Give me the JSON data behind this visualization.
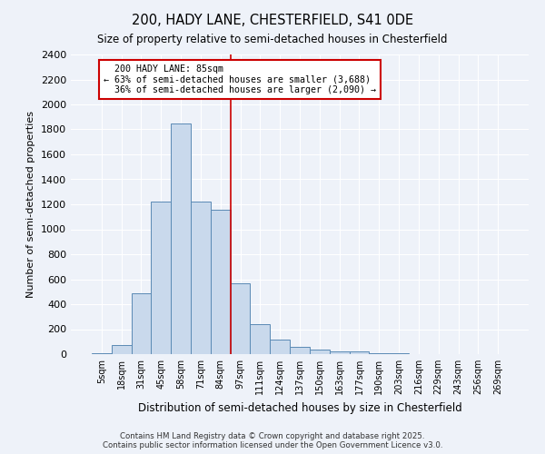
{
  "title": "200, HADY LANE, CHESTERFIELD, S41 0DE",
  "subtitle": "Size of property relative to semi-detached houses in Chesterfield",
  "xlabel": "Distribution of semi-detached houses by size in Chesterfield",
  "ylabel": "Number of semi-detached properties",
  "footer": "Contains HM Land Registry data © Crown copyright and database right 2025.\nContains public sector information licensed under the Open Government Licence v3.0.",
  "property_label": "200 HADY LANE: 85sqm",
  "pct_smaller": 63,
  "pct_larger": 36,
  "count_smaller": 3688,
  "count_larger": 2090,
  "bar_color": "#c9d9ec",
  "bar_edge_color": "#5a8ab5",
  "line_color": "#cc0000",
  "annotation_box_color": "#cc0000",
  "background_color": "#eef2f9",
  "categories": [
    "5sqm",
    "18sqm",
    "31sqm",
    "45sqm",
    "58sqm",
    "71sqm",
    "84sqm",
    "97sqm",
    "111sqm",
    "124sqm",
    "137sqm",
    "150sqm",
    "163sqm",
    "177sqm",
    "190sqm",
    "203sqm",
    "216sqm",
    "229sqm",
    "243sqm",
    "256sqm",
    "269sqm"
  ],
  "values": [
    5,
    75,
    490,
    1220,
    1850,
    1220,
    1160,
    570,
    240,
    120,
    55,
    40,
    25,
    20,
    10,
    5,
    3,
    2,
    1,
    0,
    0
  ],
  "ylim": [
    0,
    2400
  ],
  "yticks": [
    0,
    200,
    400,
    600,
    800,
    1000,
    1200,
    1400,
    1600,
    1800,
    2000,
    2200,
    2400
  ],
  "vline_x": 6.5
}
